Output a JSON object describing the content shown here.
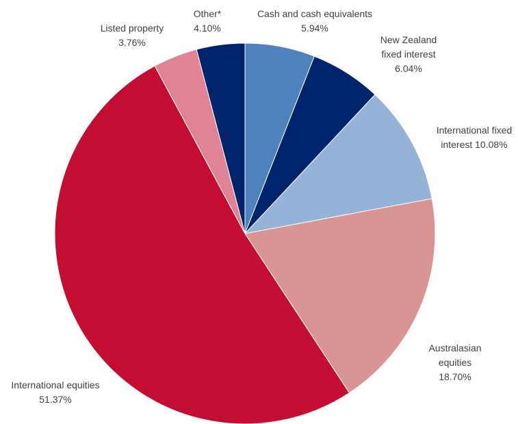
{
  "chart_data": {
    "type": "pie",
    "start_angle_deg": 0,
    "direction": "clockwise",
    "title": "",
    "legend": "none",
    "slices": [
      {
        "name": "Cash and cash equivalents",
        "value": 5.94,
        "value_label": "5.94%",
        "color": "#4F81BD",
        "label_lines": [
          "Cash and cash equivalents",
          "5.94%"
        ]
      },
      {
        "name": "New Zealand fixed interest",
        "value": 6.04,
        "value_label": "6.04%",
        "color": "#00246B",
        "label_lines": [
          "New Zealand",
          "fixed interest",
          "6.04%"
        ]
      },
      {
        "name": "International fixed interest",
        "value": 10.08,
        "value_label": "10.08%",
        "color": "#95B3D7",
        "label_lines": [
          "International fixed",
          "interest 10.08%"
        ]
      },
      {
        "name": "Australasian equities",
        "value": 18.7,
        "value_label": "18.70%",
        "color": "#D99594",
        "label_lines": [
          "Australasian",
          "equities",
          "18.70%"
        ]
      },
      {
        "name": "International equities",
        "value": 51.37,
        "value_label": "51.37%",
        "color": "#C30D31",
        "label_lines": [
          "International equities",
          "51.37%"
        ]
      },
      {
        "name": "Listed property",
        "value": 3.76,
        "value_label": "3.76%",
        "color": "#E08394",
        "label_lines": [
          "Listed property",
          "3.76%"
        ]
      },
      {
        "name": "Other*",
        "value": 4.1,
        "value_label": "4.10%",
        "color": "#00246B",
        "label_lines": [
          "Other*",
          "4.10%"
        ]
      }
    ]
  }
}
